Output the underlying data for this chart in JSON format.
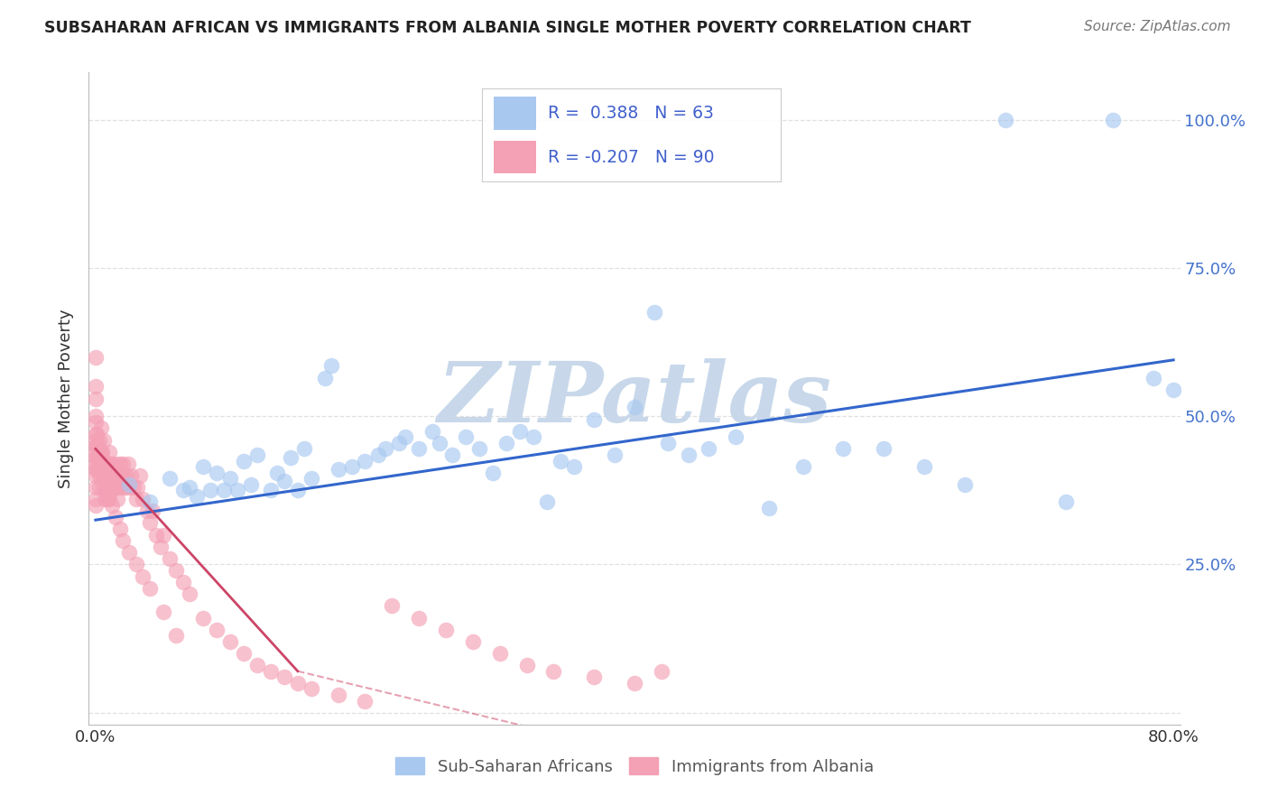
{
  "title": "SUBSAHARAN AFRICAN VS IMMIGRANTS FROM ALBANIA SINGLE MOTHER POVERTY CORRELATION CHART",
  "source": "Source: ZipAtlas.com",
  "ylabel": "Single Mother Poverty",
  "yticks": [
    0.0,
    0.25,
    0.5,
    0.75,
    1.0
  ],
  "ytick_labels": [
    "",
    "25.0%",
    "50.0%",
    "75.0%",
    "100.0%"
  ],
  "xlim": [
    -0.005,
    0.805
  ],
  "ylim": [
    -0.02,
    1.08
  ],
  "blue_R": 0.388,
  "blue_N": 63,
  "pink_R": -0.207,
  "pink_N": 90,
  "blue_color": "#a8c8f0",
  "pink_color": "#f4a0b5",
  "blue_line_color": "#3366cc",
  "pink_line_color": "#cc4466",
  "blue_label": "Sub-Saharan Africans",
  "pink_label": "Immigrants from Albania",
  "legend_text_color": "#4060cc",
  "watermark": "ZIPatlas",
  "watermark_color": "#c8d8ea",
  "background_color": "#ffffff",
  "blue_x": [
    0.025,
    0.04,
    0.055,
    0.065,
    0.07,
    0.075,
    0.08,
    0.085,
    0.09,
    0.095,
    0.1,
    0.105,
    0.11,
    0.115,
    0.12,
    0.13,
    0.135,
    0.14,
    0.145,
    0.15,
    0.155,
    0.16,
    0.17,
    0.175,
    0.18,
    0.19,
    0.2,
    0.21,
    0.215,
    0.225,
    0.23,
    0.24,
    0.25,
    0.255,
    0.265,
    0.275,
    0.285,
    0.295,
    0.305,
    0.315,
    0.325,
    0.335,
    0.345,
    0.355,
    0.37,
    0.385,
    0.4,
    0.415,
    0.425,
    0.44,
    0.455,
    0.475,
    0.5,
    0.525,
    0.555,
    0.585,
    0.615,
    0.645,
    0.675,
    0.72,
    0.755,
    0.785,
    0.8
  ],
  "blue_y": [
    0.385,
    0.355,
    0.395,
    0.375,
    0.38,
    0.365,
    0.415,
    0.375,
    0.405,
    0.375,
    0.395,
    0.375,
    0.425,
    0.385,
    0.435,
    0.375,
    0.405,
    0.39,
    0.43,
    0.375,
    0.445,
    0.395,
    0.565,
    0.585,
    0.41,
    0.415,
    0.425,
    0.435,
    0.445,
    0.455,
    0.465,
    0.445,
    0.475,
    0.455,
    0.435,
    0.465,
    0.445,
    0.405,
    0.455,
    0.475,
    0.465,
    0.355,
    0.425,
    0.415,
    0.495,
    0.435,
    0.515,
    0.675,
    0.455,
    0.435,
    0.445,
    0.465,
    0.345,
    0.415,
    0.445,
    0.445,
    0.415,
    0.385,
    1.0,
    0.355,
    1.0,
    0.565,
    0.545
  ],
  "pink_x": [
    0.0,
    0.0,
    0.0,
    0.0,
    0.0,
    0.0,
    0.0,
    0.0,
    0.0,
    0.0,
    0.002,
    0.002,
    0.003,
    0.003,
    0.003,
    0.004,
    0.004,
    0.004,
    0.005,
    0.005,
    0.005,
    0.006,
    0.006,
    0.006,
    0.007,
    0.007,
    0.008,
    0.008,
    0.009,
    0.009,
    0.01,
    0.01,
    0.01,
    0.01,
    0.01,
    0.012,
    0.012,
    0.013,
    0.013,
    0.015,
    0.015,
    0.015,
    0.016,
    0.017,
    0.018,
    0.019,
    0.02,
    0.02,
    0.021,
    0.022,
    0.023,
    0.024,
    0.025,
    0.026,
    0.028,
    0.03,
    0.031,
    0.033,
    0.035,
    0.038,
    0.04,
    0.042,
    0.045,
    0.048,
    0.05,
    0.055,
    0.06,
    0.065,
    0.07,
    0.08,
    0.09,
    0.1,
    0.11,
    0.12,
    0.13,
    0.14,
    0.15,
    0.16,
    0.18,
    0.2,
    0.22,
    0.24,
    0.26,
    0.28,
    0.3,
    0.32,
    0.34,
    0.37,
    0.4,
    0.42
  ],
  "pink_y": [
    0.42,
    0.44,
    0.46,
    0.4,
    0.38,
    0.36,
    0.35,
    0.5,
    0.55,
    0.6,
    0.42,
    0.44,
    0.38,
    0.4,
    0.46,
    0.42,
    0.44,
    0.48,
    0.4,
    0.42,
    0.44,
    0.38,
    0.42,
    0.46,
    0.36,
    0.4,
    0.38,
    0.42,
    0.36,
    0.4,
    0.38,
    0.4,
    0.42,
    0.36,
    0.44,
    0.38,
    0.42,
    0.38,
    0.4,
    0.38,
    0.4,
    0.42,
    0.36,
    0.38,
    0.42,
    0.4,
    0.38,
    0.42,
    0.4,
    0.38,
    0.4,
    0.42,
    0.38,
    0.4,
    0.38,
    0.36,
    0.38,
    0.4,
    0.36,
    0.34,
    0.32,
    0.34,
    0.3,
    0.28,
    0.3,
    0.26,
    0.24,
    0.22,
    0.2,
    0.16,
    0.14,
    0.12,
    0.1,
    0.08,
    0.07,
    0.06,
    0.05,
    0.04,
    0.03,
    0.02,
    0.18,
    0.16,
    0.14,
    0.12,
    0.1,
    0.08,
    0.07,
    0.06,
    0.05,
    0.07
  ],
  "pink_extra_x": [
    0.0,
    0.0,
    0.0,
    0.0,
    0.0,
    0.0,
    0.001,
    0.001,
    0.001,
    0.001,
    0.002,
    0.002,
    0.003,
    0.003,
    0.004,
    0.005,
    0.006,
    0.007,
    0.008,
    0.01,
    0.012,
    0.015,
    0.018,
    0.02,
    0.025,
    0.03,
    0.035,
    0.04,
    0.05,
    0.06
  ],
  "pink_extra_y": [
    0.47,
    0.45,
    0.49,
    0.43,
    0.41,
    0.53,
    0.41,
    0.43,
    0.45,
    0.47,
    0.43,
    0.45,
    0.41,
    0.43,
    0.41,
    0.43,
    0.41,
    0.39,
    0.37,
    0.37,
    0.35,
    0.33,
    0.31,
    0.29,
    0.27,
    0.25,
    0.23,
    0.21,
    0.17,
    0.13
  ]
}
